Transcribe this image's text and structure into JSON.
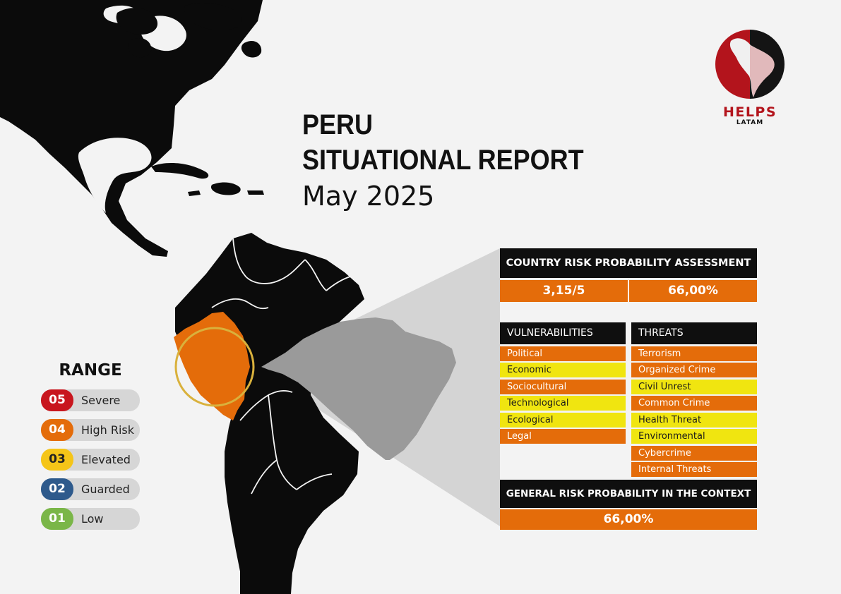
{
  "title": {
    "country": "PERU",
    "report": "SITUATIONAL REPORT",
    "date": "May 2025"
  },
  "logo": {
    "name": "HELPS",
    "subname": "LATAM"
  },
  "range": {
    "title": "RANGE",
    "levels": [
      {
        "num": "05",
        "label": "Severe",
        "color": "#c8161e"
      },
      {
        "num": "04",
        "label": "High Risk",
        "color": "#e46c0a"
      },
      {
        "num": "03",
        "label": "Elevated",
        "color": "#f5c518"
      },
      {
        "num": "02",
        "label": "Guarded",
        "color": "#2e5a8c"
      },
      {
        "num": "01",
        "label": "Low",
        "color": "#7ab648"
      }
    ]
  },
  "assessment": {
    "header": "COUNTRY RISK PROBABILITY ASSESSMENT",
    "score": "3,15/5",
    "percentage": "66,00%"
  },
  "vulnerabilities": {
    "header": "VULNERABILITIES",
    "items": [
      {
        "label": "Political",
        "level": "orange"
      },
      {
        "label": "Economic",
        "level": "yellow"
      },
      {
        "label": "Sociocultural",
        "level": "orange"
      },
      {
        "label": "Technological",
        "level": "yellow"
      },
      {
        "label": "Ecological",
        "level": "yellow"
      },
      {
        "label": "Legal",
        "level": "orange"
      }
    ]
  },
  "threats": {
    "header": "THREATS",
    "items": [
      {
        "label": "Terrorism",
        "level": "orange"
      },
      {
        "label": "Organized Crime",
        "level": "orange"
      },
      {
        "label": "Civil Unrest",
        "level": "yellow"
      },
      {
        "label": "Common Crime",
        "level": "orange"
      },
      {
        "label": "Health Threat",
        "level": "yellow"
      },
      {
        "label": "Environmental",
        "level": "yellow"
      },
      {
        "label": "Cybercrime",
        "level": "orange"
      },
      {
        "label": "Internal Threats",
        "level": "orange"
      }
    ]
  },
  "general": {
    "header": "GENERAL RISK PROBABILITY IN THE CONTEXT",
    "value": "66,00%"
  },
  "map": {
    "highlighted_country": "Peru",
    "highlight_color": "#e46c0a",
    "land_color": "#0b0b0b",
    "focus_ring_color": "#d9b13c"
  }
}
